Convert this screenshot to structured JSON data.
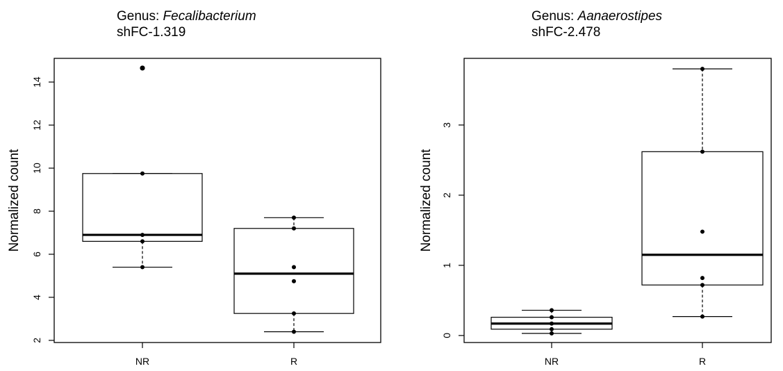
{
  "chart_data": [
    {
      "type": "box",
      "title_prefix": "Genus: ",
      "title_genus": "Fecalibacterium",
      "subtitle": "shFC-1.319",
      "xlabel": "",
      "ylabel": "Normalized count",
      "categories": [
        "NR",
        "R"
      ],
      "ylim": [
        1.9,
        15.1
      ],
      "yticks": [
        "2",
        "4",
        "6",
        "8",
        "10",
        "12",
        "14"
      ],
      "ytick_values": [
        2,
        4,
        6,
        8,
        10,
        12,
        14
      ],
      "grid": false,
      "legend": "none",
      "boxes": [
        {
          "category": "NR",
          "whisker_low": 5.4,
          "q1": 6.6,
          "median": 6.9,
          "q3": 9.75,
          "whisker_high": 9.75,
          "outliers": [
            14.65
          ],
          "points": [
            14.65,
            9.75,
            6.9,
            6.6,
            5.4
          ]
        },
        {
          "category": "R",
          "whisker_low": 2.4,
          "q1": 3.25,
          "median": 5.1,
          "q3": 7.2,
          "whisker_high": 7.7,
          "outliers": [],
          "points": [
            7.7,
            7.2,
            5.4,
            4.75,
            3.25,
            2.4
          ]
        }
      ]
    },
    {
      "type": "box",
      "title_prefix": "Genus: ",
      "title_genus": "Aanaerostipes",
      "subtitle": "shFC-2.478",
      "xlabel": "",
      "ylabel": "Normalized count",
      "categories": [
        "NR",
        "R"
      ],
      "ylim": [
        -0.1,
        3.95
      ],
      "yticks": [
        "0",
        "1",
        "2",
        "3"
      ],
      "ytick_values": [
        0,
        1,
        2,
        3
      ],
      "grid": false,
      "legend": "none",
      "boxes": [
        {
          "category": "NR",
          "whisker_low": 0.03,
          "q1": 0.09,
          "median": 0.17,
          "q3": 0.26,
          "whisker_high": 0.36,
          "outliers": [],
          "points": [
            0.36,
            0.26,
            0.17,
            0.09,
            0.03
          ]
        },
        {
          "category": "R",
          "whisker_low": 0.27,
          "q1": 0.72,
          "median": 1.15,
          "q3": 2.62,
          "whisker_high": 3.8,
          "outliers": [],
          "points": [
            3.8,
            2.62,
            1.48,
            0.82,
            0.72,
            0.27
          ]
        }
      ]
    }
  ]
}
